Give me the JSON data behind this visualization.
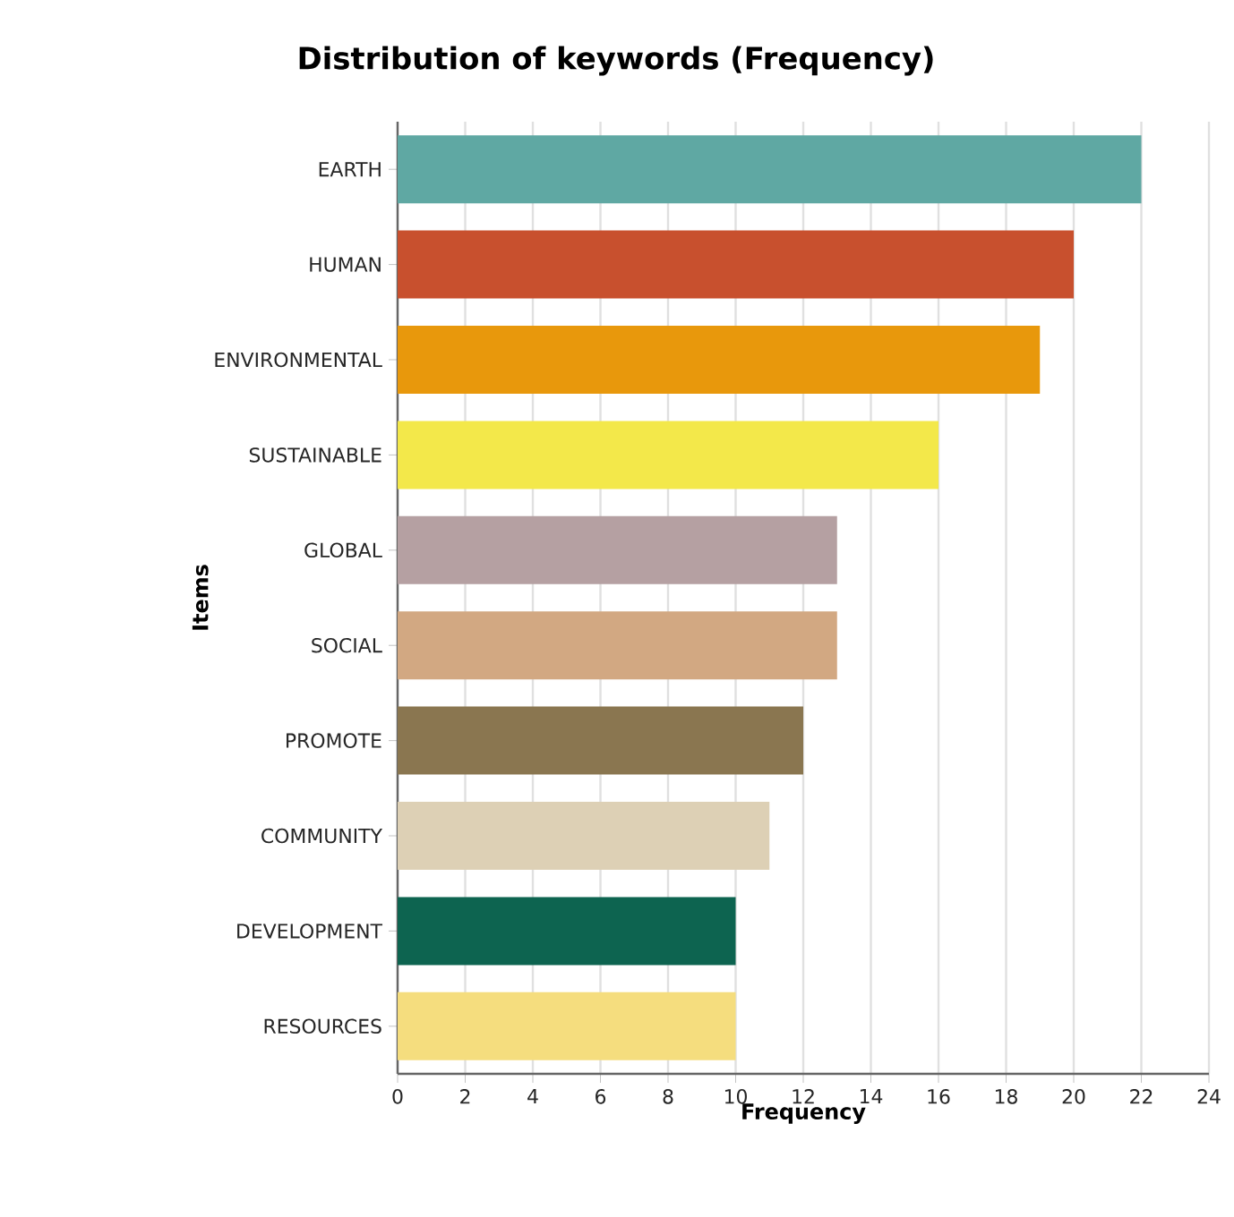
{
  "chart_data": {
    "type": "bar",
    "orientation": "horizontal",
    "title": "Distribution of keywords (Frequency)",
    "xlabel": "Frequency",
    "ylabel": "Items",
    "categories": [
      "EARTH",
      "HUMAN",
      "ENVIRONMENTAL",
      "SUSTAINABLE",
      "GLOBAL",
      "SOCIAL",
      "PROMOTE",
      "COMMUNITY",
      "DEVELOPMENT",
      "RESOURCES"
    ],
    "values": [
      22,
      20,
      19,
      16,
      13,
      13,
      12,
      11,
      10,
      10
    ],
    "colors": [
      "#5fa8a3",
      "#c8502e",
      "#e8980c",
      "#f3e84a",
      "#b5a0a2",
      "#d2a882",
      "#8a7650",
      "#ddd0b5",
      "#0d6450",
      "#f5dd7e"
    ],
    "xlim": [
      0,
      24
    ],
    "xticks": [
      0,
      2,
      4,
      6,
      8,
      10,
      12,
      14,
      16,
      18,
      20,
      22,
      24
    ],
    "grid": "x"
  }
}
